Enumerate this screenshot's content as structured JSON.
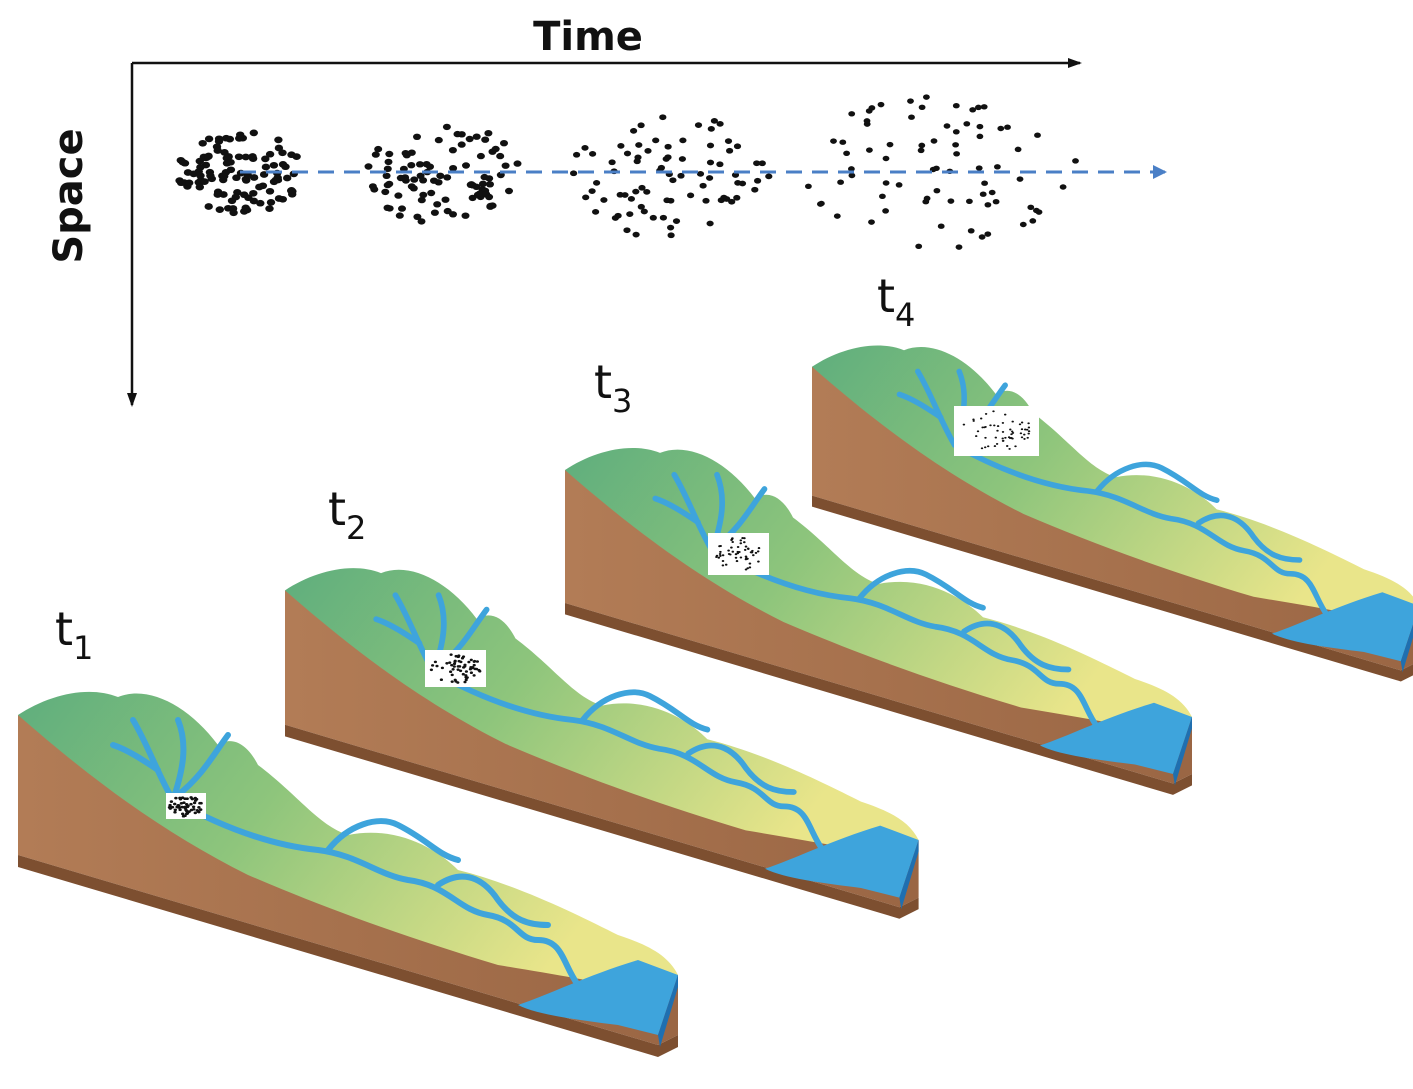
{
  "axes": {
    "time_label": "Time",
    "space_label": "Space"
  },
  "time_steps": [
    {
      "base": "t",
      "sub": "1"
    },
    {
      "base": "t",
      "sub": "2"
    },
    {
      "base": "t",
      "sub": "3"
    },
    {
      "base": "t",
      "sub": "4"
    }
  ],
  "colors": {
    "axis": "#111111",
    "dashed_arrow": "#4a7fc6",
    "particle": "#111111",
    "mountain_green": "#6fb784",
    "lowland_yellow": "#e9e58a",
    "river": "#3ea4dc",
    "soil": "#b07a55",
    "soil_dark": "#8a5a3a",
    "sea": "#2f8fd0"
  },
  "icons": {
    "particle_cloud": "particle-cloud-icon",
    "landscape": "river-landscape-block-icon"
  }
}
